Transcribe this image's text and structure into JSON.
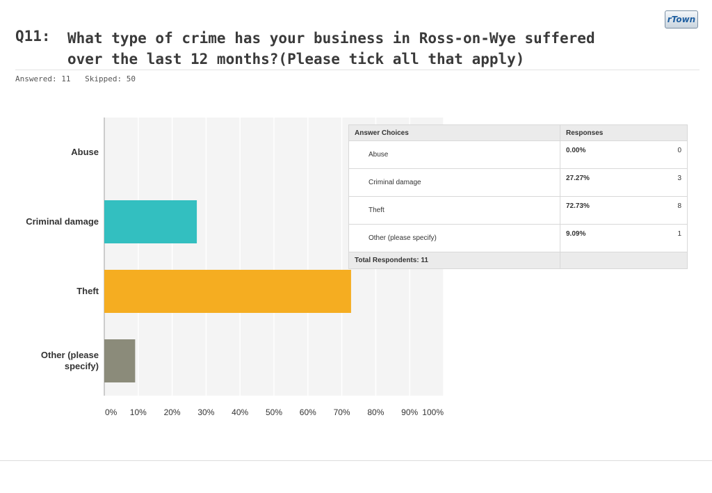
{
  "logo": {
    "text": "rTown"
  },
  "question": {
    "number": "Q11:",
    "text": "What type of crime has your business in Ross-on-Wye suffered over the last 12 months?(Please tick all that apply)"
  },
  "stats": {
    "answered": "Answered: 11",
    "skipped": "Skipped: 50"
  },
  "chart_data": {
    "type": "bar",
    "orientation": "horizontal",
    "categories": [
      "Abuse",
      "Criminal damage",
      "Theft",
      "Other (please specify)"
    ],
    "values": [
      0,
      27.27,
      72.73,
      9.09
    ],
    "colors": [
      "#cccccc",
      "#33bfc0",
      "#f5ad21",
      "#8b8b7a"
    ],
    "xlim": [
      0,
      100
    ],
    "xticks": [
      "0%",
      "10%",
      "20%",
      "30%",
      "40%",
      "50%",
      "60%",
      "70%",
      "80%",
      "90%",
      "100%"
    ],
    "grid": true
  },
  "table": {
    "headers": {
      "choice": "Answer Choices",
      "responses": "Responses"
    },
    "rows": [
      {
        "choice": "Abuse",
        "percent": "0.00%",
        "count": "0"
      },
      {
        "choice": "Criminal damage",
        "percent": "27.27%",
        "count": "3"
      },
      {
        "choice": "Theft",
        "percent": "72.73%",
        "count": "8"
      },
      {
        "choice": "Other (please specify)",
        "percent": "9.09%",
        "count": "1"
      }
    ],
    "total": "Total Respondents: 11"
  }
}
